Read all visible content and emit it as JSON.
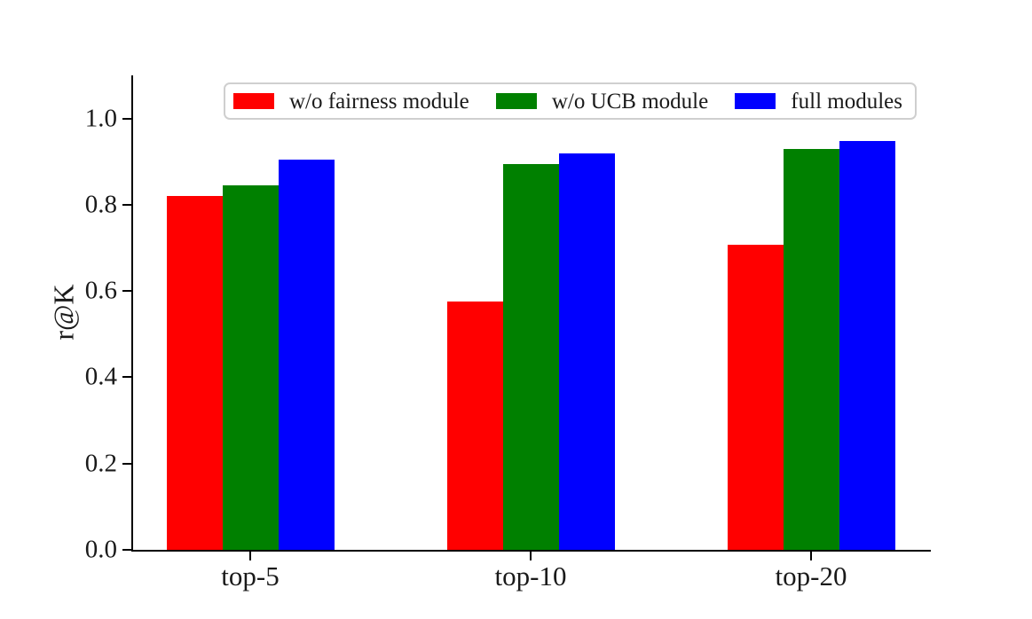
{
  "chart_data": {
    "type": "bar",
    "title": "",
    "xlabel": "",
    "ylabel": "r@K",
    "categories": [
      "top-5",
      "top-10",
      "top-20"
    ],
    "series": [
      {
        "name": "w/o fairness module",
        "color": "#ff0000",
        "values": [
          0.82,
          0.575,
          0.707
        ]
      },
      {
        "name": "w/o UCB module",
        "color": "#008000",
        "values": [
          0.846,
          0.895,
          0.929
        ]
      },
      {
        "name": "full modules",
        "color": "#0000ff",
        "values": [
          0.904,
          0.92,
          0.947
        ]
      }
    ],
    "ylim": [
      0,
      1.1
    ],
    "yticks": [
      0.0,
      0.2,
      0.4,
      0.6,
      0.8,
      1.0
    ],
    "ytick_format": "one-decimal",
    "legend_position": "upper center",
    "legend_columns": 3,
    "grid": false,
    "axis_color": "#000000",
    "legend_border_color": "#cfcfcf",
    "background_color": "#ffffff"
  }
}
